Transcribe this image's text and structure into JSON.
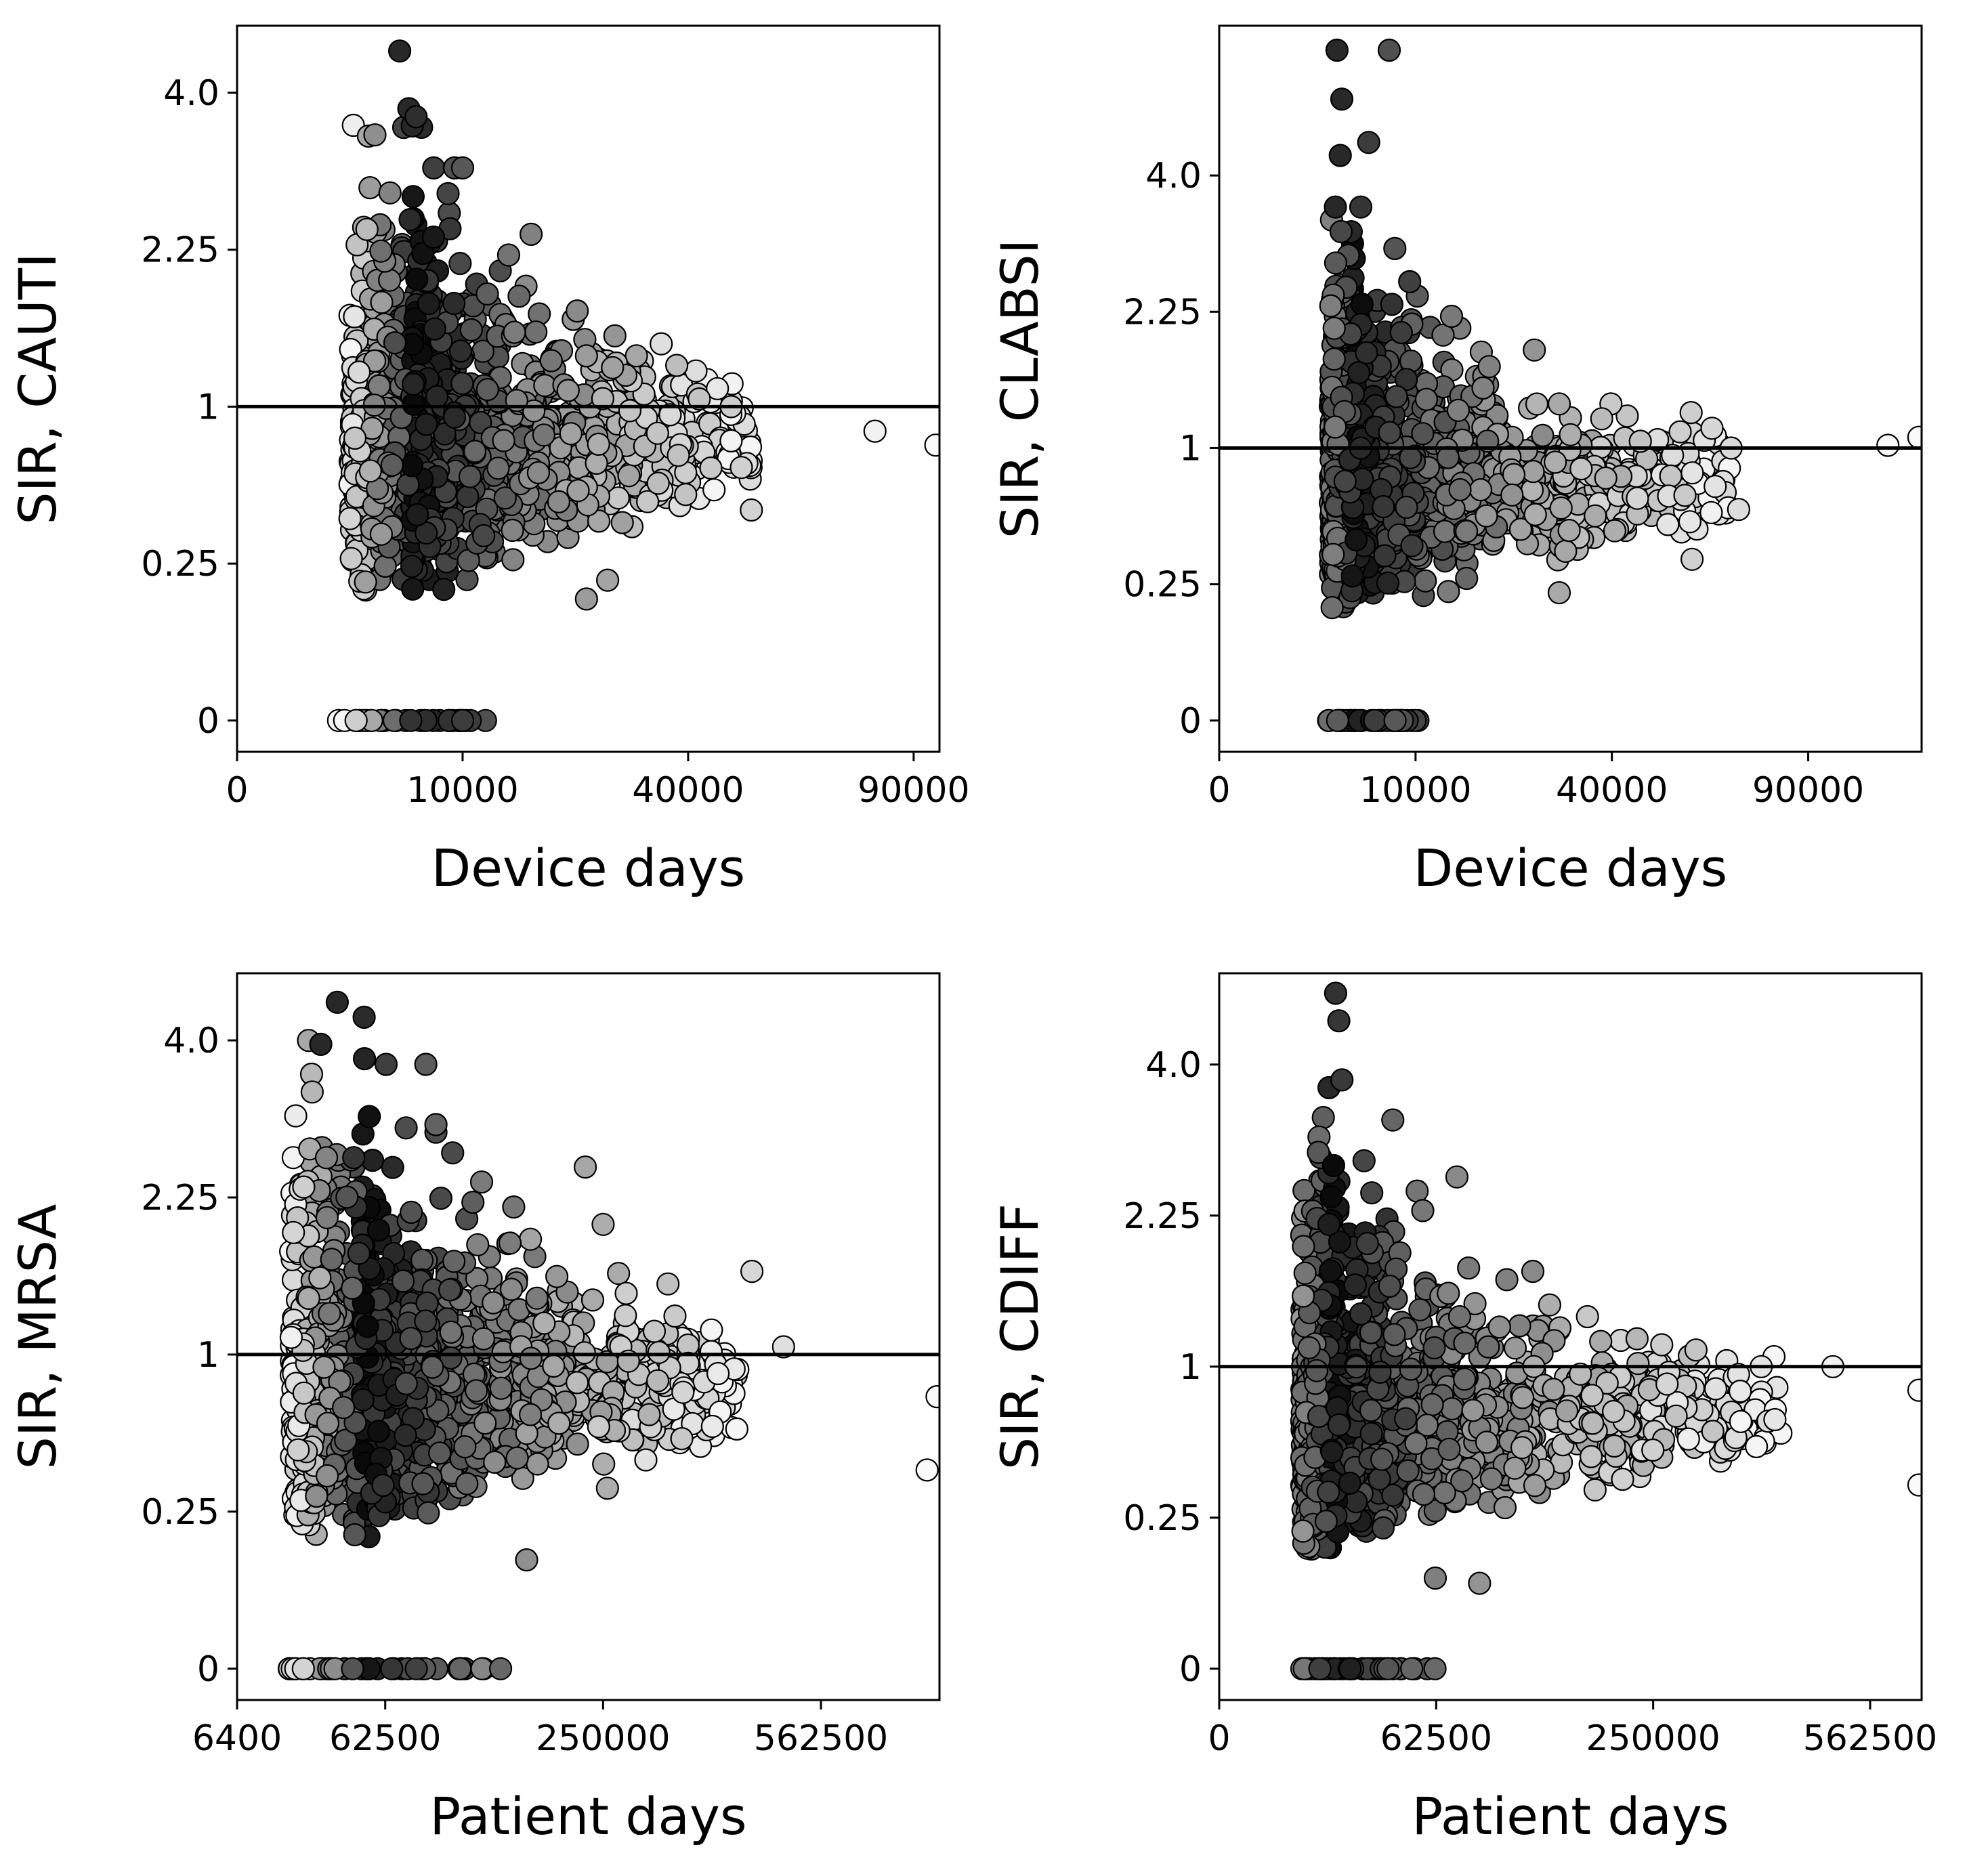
{
  "chart_data": [
    {
      "type": "scatter",
      "xlabel": "Device days",
      "ylabel": "SIR, CAUTI",
      "x_scale": "sqrt",
      "y_scale": "sqrt",
      "x_ticks": [
        {
          "value": 0,
          "label": "0"
        },
        {
          "value": 10000,
          "label": "10000"
        },
        {
          "value": 40000,
          "label": "40000"
        },
        {
          "value": 90000,
          "label": "90000"
        }
      ],
      "y_ticks": [
        {
          "value": 0,
          "label": "0"
        },
        {
          "value": 0.25,
          "label": "0.25"
        },
        {
          "value": 1,
          "label": "1"
        },
        {
          "value": 2.25,
          "label": "2.25"
        },
        {
          "value": 4.0,
          "label": "4.0"
        }
      ],
      "xlim": [
        0,
        97000
      ],
      "ylim": [
        0,
        4.9
      ],
      "reference_line_y": 1,
      "zero_row_x_range": [
        2000,
        12300
      ],
      "cloud": {
        "x_range": [
          2500,
          52000
        ],
        "peak_x": 6000,
        "y_median": 0.8
      },
      "extra_points": [
        {
          "x": 5200,
          "y": 4.55
        },
        {
          "x": 5800,
          "y": 3.8
        },
        {
          "x": 6300,
          "y": 3.7
        },
        {
          "x": 7600,
          "y": 3.1
        },
        {
          "x": 9300,
          "y": 3.1
        },
        {
          "x": 10000,
          "y": 3.1
        },
        {
          "x": 14500,
          "y": 2.2
        },
        {
          "x": 17000,
          "y": 2.4
        },
        {
          "x": 24000,
          "y": 1.35
        },
        {
          "x": 38000,
          "y": 1.28
        },
        {
          "x": 42000,
          "y": 1.05
        },
        {
          "x": 48000,
          "y": 1.0
        },
        {
          "x": 50000,
          "y": 0.65
        },
        {
          "x": 52000,
          "y": 0.45
        },
        {
          "x": 80000,
          "y": 0.85
        },
        {
          "x": 96000,
          "y": 0.77
        },
        {
          "x": 24000,
          "y": 0.15
        },
        {
          "x": 27000,
          "y": 0.2
        }
      ]
    },
    {
      "type": "scatter",
      "xlabel": "Device days",
      "ylabel": "SIR, CLABSI",
      "x_scale": "sqrt",
      "y_scale": "sqrt",
      "x_ticks": [
        {
          "value": 0,
          "label": "0"
        },
        {
          "value": 10000,
          "label": "10000"
        },
        {
          "value": 40000,
          "label": "40000"
        },
        {
          "value": 90000,
          "label": "90000"
        }
      ],
      "y_ticks": [
        {
          "value": 0,
          "label": "0"
        },
        {
          "value": 0.25,
          "label": "0.25"
        },
        {
          "value": 1,
          "label": "1"
        },
        {
          "value": 2.25,
          "label": "2.25"
        },
        {
          "value": 4.0,
          "label": "4.0"
        }
      ],
      "xlim": [
        0,
        128000
      ],
      "ylim": [
        0,
        6.5
      ],
      "reference_line_y": 1,
      "zero_row_x_range": [
        3100,
        11000
      ],
      "cloud": {
        "x_range": [
          3200,
          68000
        ],
        "peak_x": 4500,
        "y_median": 0.75
      },
      "extra_points": [
        {
          "x": 3600,
          "y": 6.05
        },
        {
          "x": 7500,
          "y": 6.05
        },
        {
          "x": 3900,
          "y": 5.2
        },
        {
          "x": 3800,
          "y": 4.3
        },
        {
          "x": 5800,
          "y": 4.5
        },
        {
          "x": 3500,
          "y": 3.55
        },
        {
          "x": 5200,
          "y": 3.55
        },
        {
          "x": 8000,
          "y": 3.0
        },
        {
          "x": 13000,
          "y": 2.0
        },
        {
          "x": 14000,
          "y": 2.2
        },
        {
          "x": 30000,
          "y": 1.35
        },
        {
          "x": 32000,
          "y": 1.1
        },
        {
          "x": 46000,
          "y": 1.05
        },
        {
          "x": 63000,
          "y": 1.15
        },
        {
          "x": 68000,
          "y": 1.0
        },
        {
          "x": 70000,
          "y": 0.6
        },
        {
          "x": 116000,
          "y": 1.02
        },
        {
          "x": 127000,
          "y": 1.08
        },
        {
          "x": 58000,
          "y": 0.35
        },
        {
          "x": 30000,
          "y": 0.22
        }
      ]
    },
    {
      "type": "scatter",
      "xlabel": "Patient days",
      "ylabel": "SIR, MRSA",
      "x_scale": "sqrt",
      "y_scale": "sqrt",
      "x_ticks": [
        {
          "value": 6400,
          "label": "6400"
        },
        {
          "value": 62500,
          "label": "62500"
        },
        {
          "value": 250000,
          "label": "250000"
        },
        {
          "value": 562500,
          "label": "562500"
        }
      ],
      "y_ticks": [
        {
          "value": 0,
          "label": "0"
        },
        {
          "value": 0.25,
          "label": "0.25"
        },
        {
          "value": 1,
          "label": "1"
        },
        {
          "value": 2.25,
          "label": "2.25"
        },
        {
          "value": 4.0,
          "label": "4.0"
        }
      ],
      "xlim": [
        6400,
        785000
      ],
      "ylim": [
        0,
        4.9
      ],
      "reference_line_y": 1,
      "zero_row_x_range": [
        18000,
        150000
      ],
      "cloud": {
        "x_range": [
          20000,
          430000
        ],
        "peak_x": 50000,
        "y_median": 0.8
      },
      "extra_points": [
        {
          "x": 38000,
          "y": 4.5
        },
        {
          "x": 51000,
          "y": 4.3
        },
        {
          "x": 31000,
          "y": 3.95
        },
        {
          "x": 63000,
          "y": 3.7
        },
        {
          "x": 88000,
          "y": 3.7
        },
        {
          "x": 95000,
          "y": 3.0
        },
        {
          "x": 130000,
          "y": 2.4
        },
        {
          "x": 230000,
          "y": 2.55
        },
        {
          "x": 250000,
          "y": 2.0
        },
        {
          "x": 450000,
          "y": 1.6
        },
        {
          "x": 330000,
          "y": 1.5
        },
        {
          "x": 500000,
          "y": 1.05
        },
        {
          "x": 780000,
          "y": 0.75
        },
        {
          "x": 760000,
          "y": 0.4
        },
        {
          "x": 170000,
          "y": 0.12
        },
        {
          "x": 255000,
          "y": 0.33
        }
      ]
    },
    {
      "type": "scatter",
      "xlabel": "Patient days",
      "ylabel": "SIR, CDIFF",
      "x_scale": "sqrt",
      "y_scale": "sqrt",
      "x_ticks": [
        {
          "value": 0,
          "label": "0"
        },
        {
          "value": 62500,
          "label": "62500"
        },
        {
          "value": 250000,
          "label": "250000"
        },
        {
          "value": 562500,
          "label": "562500"
        }
      ],
      "y_ticks": [
        {
          "value": 0,
          "label": "0"
        },
        {
          "value": 0.25,
          "label": "0.25"
        },
        {
          "value": 1,
          "label": "1"
        },
        {
          "value": 2.25,
          "label": "2.25"
        },
        {
          "value": 4.0,
          "label": "4.0"
        }
      ],
      "xlim": [
        0,
        655000
      ],
      "ylim": [
        0,
        5.3
      ],
      "reference_line_y": 1,
      "zero_row_x_range": [
        9000,
        62500
      ],
      "cloud": {
        "x_range": [
          9000,
          420000
        ],
        "peak_x": 16000,
        "y_median": 0.7
      },
      "extra_points": [
        {
          "x": 18000,
          "y": 5.0
        },
        {
          "x": 19000,
          "y": 4.6
        },
        {
          "x": 16000,
          "y": 3.7
        },
        {
          "x": 20000,
          "y": 3.8
        },
        {
          "x": 40000,
          "y": 3.3
        },
        {
          "x": 52000,
          "y": 2.5
        },
        {
          "x": 55000,
          "y": 2.3
        },
        {
          "x": 75000,
          "y": 2.65
        },
        {
          "x": 145000,
          "y": 1.45
        },
        {
          "x": 260000,
          "y": 1.15
        },
        {
          "x": 390000,
          "y": 1.0
        },
        {
          "x": 500000,
          "y": 1.0
        },
        {
          "x": 650000,
          "y": 0.85
        },
        {
          "x": 650000,
          "y": 0.37
        },
        {
          "x": 410000,
          "y": 0.68
        },
        {
          "x": 90000,
          "y": 0.08
        },
        {
          "x": 62000,
          "y": 0.09
        }
      ]
    }
  ]
}
